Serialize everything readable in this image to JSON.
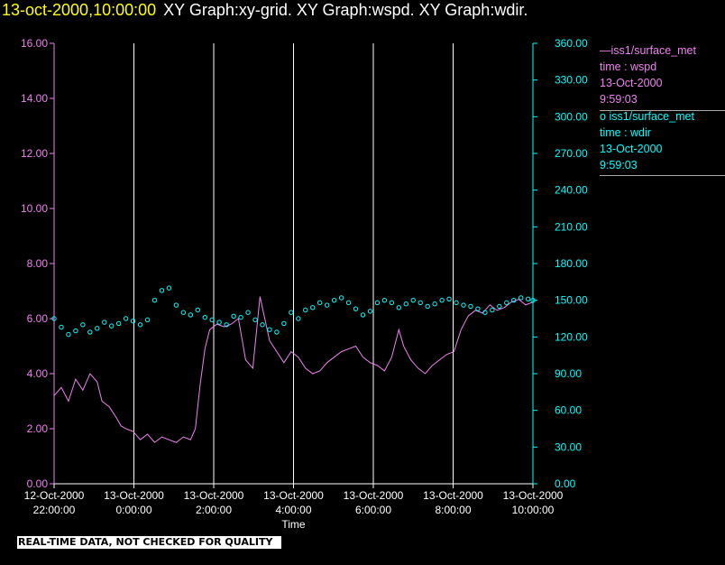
{
  "header": {
    "timestamp": "13-oct-2000,10:00:00",
    "graphs": "XY Graph:xy-grid.  XY Graph:wspd.  XY Graph:wdir."
  },
  "colors": {
    "wspd": "#ee82ee",
    "wdir": "#00ffff",
    "grid": "#ffffff",
    "background": "#000000",
    "title_time": "#ffff00"
  },
  "legend": {
    "wspd": {
      "marker": "—",
      "name": "iss1/surface_met",
      "var": "time : wspd",
      "date": "13-Oct-2000",
      "time": "9:59:03"
    },
    "wdir": {
      "marker": "o",
      "name": "iss1/surface_met",
      "var": "time : wdir",
      "date": "13-Oct-2000",
      "time": "9:59:03"
    }
  },
  "footer": {
    "note": "REAL-TIME DATA, NOT CHECKED FOR QUALITY"
  },
  "chart_data": {
    "type": "line",
    "xlabel": "Time",
    "x_range_hours": [
      0,
      12
    ],
    "x_ticks": [
      {
        "date": "12-Oct-2000",
        "time": "22:00:00"
      },
      {
        "date": "13-Oct-2000",
        "time": "0:00:00"
      },
      {
        "date": "13-Oct-2000",
        "time": "2:00:00"
      },
      {
        "date": "13-Oct-2000",
        "time": "4:00:00"
      },
      {
        "date": "13-Oct-2000",
        "time": "6:00:00"
      },
      {
        "date": "13-Oct-2000",
        "time": "8:00:00"
      },
      {
        "date": "13-Oct-2000",
        "time": "10:00:00"
      }
    ],
    "vertical_grid": true,
    "y_left": {
      "range": [
        0,
        16
      ],
      "ticks": [
        "0.00",
        "2.00",
        "4.00",
        "6.00",
        "8.00",
        "10.00",
        "12.00",
        "14.00",
        "16.00"
      ]
    },
    "y_right": {
      "range": [
        0,
        360
      ],
      "ticks": [
        "0.00",
        "30.00",
        "60.00",
        "90.00",
        "120.00",
        "150.00",
        "180.00",
        "210.00",
        "240.00",
        "270.00",
        "300.00",
        "330.00",
        "360.00"
      ]
    },
    "series": [
      {
        "key": "wspd",
        "style": "line",
        "axis": "left",
        "points": [
          [
            0.0,
            3.2
          ],
          [
            0.3,
            3.5
          ],
          [
            0.6,
            3.0
          ],
          [
            0.9,
            3.8
          ],
          [
            1.2,
            3.4
          ],
          [
            1.5,
            4.0
          ],
          [
            1.8,
            3.7
          ],
          [
            2.0,
            3.0
          ],
          [
            2.3,
            2.8
          ],
          [
            2.6,
            2.4
          ],
          [
            2.8,
            2.1
          ],
          [
            3.0,
            2.0
          ],
          [
            3.3,
            1.9
          ],
          [
            3.6,
            1.6
          ],
          [
            3.9,
            1.8
          ],
          [
            4.2,
            1.5
          ],
          [
            4.5,
            1.7
          ],
          [
            4.8,
            1.6
          ],
          [
            5.1,
            1.5
          ],
          [
            5.4,
            1.7
          ],
          [
            5.7,
            1.6
          ],
          [
            5.9,
            2.0
          ],
          [
            6.1,
            3.6
          ],
          [
            6.3,
            4.9
          ],
          [
            6.5,
            5.6
          ],
          [
            6.8,
            5.8
          ],
          [
            7.1,
            5.7
          ],
          [
            7.4,
            5.8
          ],
          [
            7.7,
            6.0
          ],
          [
            8.0,
            4.5
          ],
          [
            8.3,
            4.2
          ],
          [
            8.6,
            6.8
          ],
          [
            8.8,
            6.0
          ],
          [
            9.0,
            5.2
          ],
          [
            9.3,
            4.8
          ],
          [
            9.6,
            4.4
          ],
          [
            9.9,
            4.8
          ],
          [
            10.2,
            4.6
          ],
          [
            10.5,
            4.2
          ],
          [
            10.8,
            4.0
          ],
          [
            11.1,
            4.1
          ],
          [
            11.4,
            4.4
          ],
          [
            11.7,
            4.6
          ],
          [
            12.0,
            4.8
          ],
          [
            12.3,
            4.9
          ],
          [
            12.6,
            5.0
          ],
          [
            12.9,
            4.6
          ],
          [
            13.2,
            4.4
          ],
          [
            13.5,
            4.3
          ],
          [
            13.8,
            4.1
          ],
          [
            14.1,
            4.6
          ],
          [
            14.4,
            5.6
          ],
          [
            14.6,
            5.0
          ],
          [
            14.9,
            4.5
          ],
          [
            15.2,
            4.2
          ],
          [
            15.5,
            4.0
          ],
          [
            15.8,
            4.3
          ],
          [
            16.1,
            4.5
          ],
          [
            16.4,
            4.7
          ],
          [
            16.7,
            4.8
          ],
          [
            17.0,
            5.6
          ],
          [
            17.3,
            6.1
          ],
          [
            17.6,
            6.3
          ],
          [
            17.9,
            6.2
          ],
          [
            18.2,
            6.5
          ],
          [
            18.5,
            6.3
          ],
          [
            18.8,
            6.4
          ],
          [
            19.1,
            6.6
          ],
          [
            19.4,
            6.7
          ],
          [
            19.7,
            6.5
          ],
          [
            20.0,
            6.6
          ]
        ]
      },
      {
        "key": "wdir",
        "style": "scatter",
        "axis": "right",
        "points": [
          [
            0.0,
            135
          ],
          [
            0.3,
            128
          ],
          [
            0.6,
            122
          ],
          [
            0.9,
            125
          ],
          [
            1.2,
            130
          ],
          [
            1.5,
            124
          ],
          [
            1.8,
            127
          ],
          [
            2.1,
            132
          ],
          [
            2.4,
            129
          ],
          [
            2.7,
            131
          ],
          [
            3.0,
            135
          ],
          [
            3.3,
            133
          ],
          [
            3.6,
            130
          ],
          [
            3.9,
            134
          ],
          [
            4.2,
            150
          ],
          [
            4.5,
            158
          ],
          [
            4.8,
            160
          ],
          [
            5.1,
            146
          ],
          [
            5.4,
            140
          ],
          [
            5.7,
            138
          ],
          [
            6.0,
            142
          ],
          [
            6.3,
            136
          ],
          [
            6.6,
            134
          ],
          [
            6.9,
            132
          ],
          [
            7.2,
            130
          ],
          [
            7.5,
            137
          ],
          [
            7.8,
            136
          ],
          [
            8.1,
            140
          ],
          [
            8.4,
            134
          ],
          [
            8.7,
            130
          ],
          [
            9.0,
            126
          ],
          [
            9.3,
            124
          ],
          [
            9.6,
            131
          ],
          [
            9.9,
            140
          ],
          [
            10.2,
            135
          ],
          [
            10.5,
            142
          ],
          [
            10.8,
            144
          ],
          [
            11.1,
            148
          ],
          [
            11.4,
            146
          ],
          [
            11.7,
            150
          ],
          [
            12.0,
            152
          ],
          [
            12.3,
            148
          ],
          [
            12.6,
            143
          ],
          [
            12.9,
            138
          ],
          [
            13.2,
            141
          ],
          [
            13.5,
            148
          ],
          [
            13.8,
            150
          ],
          [
            14.1,
            148
          ],
          [
            14.4,
            144
          ],
          [
            14.7,
            147
          ],
          [
            15.0,
            150
          ],
          [
            15.3,
            148
          ],
          [
            15.6,
            145
          ],
          [
            15.9,
            147
          ],
          [
            16.2,
            150
          ],
          [
            16.5,
            151
          ],
          [
            16.8,
            148
          ],
          [
            17.1,
            146
          ],
          [
            17.4,
            145
          ],
          [
            17.7,
            143
          ],
          [
            18.0,
            140
          ],
          [
            18.3,
            142
          ],
          [
            18.6,
            145
          ],
          [
            18.9,
            148
          ],
          [
            19.2,
            150
          ],
          [
            19.5,
            152
          ],
          [
            19.8,
            151
          ],
          [
            20.0,
            150
          ]
        ]
      }
    ]
  }
}
